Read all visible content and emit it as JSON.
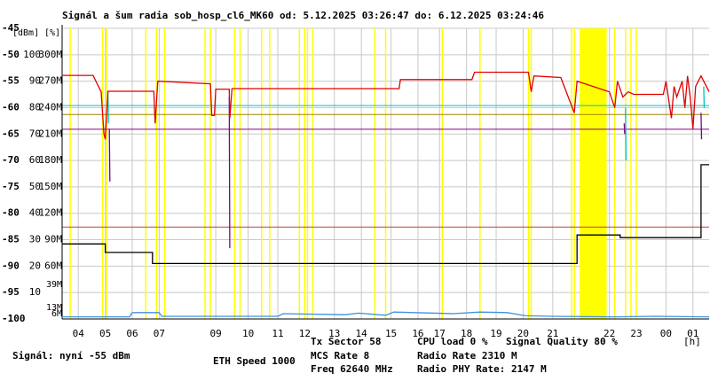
{
  "chart_data": {
    "type": "line",
    "title": "Signál a šum radia sob_hosp_cl6_MK60 od: 5.12.2025 03:26:47 do: 6.12.2025 03:24:46",
    "y_unit_label": "[dBm]",
    "y2_unit_label": "[%]",
    "x_unit_label": "[h]",
    "xlim": [
      0,
      24
    ],
    "xticks": [
      {
        "value": 0.6,
        "label": "04"
      },
      {
        "value": 1.6,
        "label": "05"
      },
      {
        "value": 2.6,
        "label": "06"
      },
      {
        "value": 3.6,
        "label": "07"
      },
      {
        "value": 5.7,
        "label": "09"
      },
      {
        "value": 6.9,
        "label": "10"
      },
      {
        "value": 8.0,
        "label": "11"
      },
      {
        "value": 9.0,
        "label": "12"
      },
      {
        "value": 10.1,
        "label": "13"
      },
      {
        "value": 11.1,
        "label": "14"
      },
      {
        "value": 12.2,
        "label": "15"
      },
      {
        "value": 13.2,
        "label": "16"
      },
      {
        "value": 14.0,
        "label": "17"
      },
      {
        "value": 15.0,
        "label": "18"
      },
      {
        "value": 16.1,
        "label": "19"
      },
      {
        "value": 17.1,
        "label": "20"
      },
      {
        "value": 18.2,
        "label": "21"
      },
      {
        "value": 20.3,
        "label": "22"
      },
      {
        "value": 21.3,
        "label": "23"
      },
      {
        "value": 22.4,
        "label": "00"
      },
      {
        "value": 23.4,
        "label": "01"
      }
    ],
    "ylim": [
      -100,
      -45
    ],
    "yticks": [
      -45,
      -50,
      -55,
      -60,
      -65,
      -70,
      -75,
      -80,
      -85,
      -90,
      -95,
      -100
    ],
    "y2lim": [
      0,
      110
    ],
    "y2ticks": [
      100,
      90,
      80,
      70,
      60,
      50,
      40,
      30,
      20,
      10
    ],
    "y3lim": [
      0,
      330
    ],
    "y3ticks": [
      {
        "value": 300,
        "label": "300M"
      },
      {
        "value": 270,
        "label": "270M"
      },
      {
        "value": 240,
        "label": "240M"
      },
      {
        "value": 210,
        "label": "210M"
      },
      {
        "value": 180,
        "label": "180M"
      },
      {
        "value": 150,
        "label": "150M"
      },
      {
        "value": 120,
        "label": "120M"
      },
      {
        "value": 90,
        "label": "90M"
      },
      {
        "value": 60,
        "label": "60M"
      }
    ],
    "y3_markers": [
      {
        "value": 39,
        "label": "39M",
        "color": "#e080e0"
      },
      {
        "value": 13,
        "label": "13M",
        "color": "#e080e0"
      },
      {
        "value": 6,
        "label": "6M",
        "color": "#800080"
      }
    ],
    "grid": true,
    "eth_events": [
      0.3,
      1.5,
      1.65,
      3.1,
      3.5,
      3.8,
      5.3,
      5.5,
      6.4,
      6.6,
      7.4,
      7.7,
      8.8,
      9.0,
      9.1,
      9.3,
      11.6,
      12.0,
      14.1,
      15.5,
      17.3,
      17.4,
      18.9,
      19.0,
      20.5,
      20.9,
      21.1,
      21.3
    ],
    "eth_color": "#ffff00",
    "eth_block": [
      19.2,
      20.2
    ],
    "ref_lines": [
      {
        "value": -59.6,
        "color": "#00c0c0"
      },
      {
        "value": -61.3,
        "color": "#a08000"
      },
      {
        "value": -64.1,
        "color": "#800080"
      },
      {
        "value": -82.6,
        "color": "#c04040"
      }
    ],
    "series": [
      {
        "name": "Tx Sector",
        "color": "#000000",
        "x": [
          0,
          1.6,
          1.6,
          3.35,
          3.35,
          19.1,
          19.1,
          20.7,
          20.7,
          23.7,
          23.7,
          24
        ],
        "values": [
          -85.8,
          -85.8,
          -87.4,
          -87.4,
          -89.5,
          -89.5,
          -84.1,
          -84.1,
          -84.6,
          -84.6,
          -70.8,
          -70.8
        ]
      },
      {
        "name": "CPU load",
        "color": "#4090e0",
        "x": [
          0,
          2.5,
          2.6,
          3.6,
          3.7,
          8.0,
          8.2,
          10.5,
          11.0,
          12.0,
          12.3,
          14.5,
          15.5,
          16.5,
          17.2,
          18.2,
          20.5,
          22.0,
          24
        ],
        "values": [
          -99.6,
          -99.6,
          -98.8,
          -98.8,
          -99.5,
          -99.5,
          -99.0,
          -99.2,
          -98.9,
          -99.3,
          -98.7,
          -99.0,
          -98.7,
          -98.8,
          -99.4,
          -99.5,
          -99.6,
          -99.5,
          -99.6
        ]
      },
      {
        "name": "Signal Quality",
        "color": "#00c0c0",
        "x": [
          1.7,
          1.72,
          null,
          20.9,
          20.92,
          null,
          23.8,
          23.82
        ],
        "values": [
          -57,
          -63,
          null,
          -60,
          -70,
          null,
          -56,
          -60
        ]
      },
      {
        "name": "Radio PHY Rate",
        "color": "#800080",
        "x": [
          1.75,
          1.77,
          null,
          6.2,
          6.22,
          null,
          20.85,
          20.87,
          null,
          23.7,
          23.72
        ],
        "values": [
          -64,
          -74,
          null,
          -58,
          -86.6,
          null,
          -63,
          -65,
          null,
          -61,
          -66
        ]
      },
      {
        "name": "Signál",
        "color": "#e00000",
        "x": [
          0,
          1.15,
          1.3,
          1.45,
          1.55,
          1.6,
          1.7,
          3.4,
          3.45,
          3.55,
          5.5,
          5.55,
          5.65,
          5.7,
          6.2,
          6.22,
          6.3,
          12.5,
          12.55,
          15.2,
          15.3,
          17.3,
          17.4,
          17.5,
          18.5,
          19.0,
          19.1,
          20.3,
          20.5,
          20.6,
          20.8,
          21.0,
          21.2,
          22.3,
          22.4,
          22.6,
          22.7,
          22.8,
          23.0,
          23.1,
          23.2,
          23.3,
          23.4,
          23.5,
          23.7,
          24
        ],
        "values": [
          -53.9,
          -53.9,
          -55.5,
          -57,
          -65,
          -66,
          -56.9,
          -56.9,
          -63,
          -55,
          -55.5,
          -61.5,
          -61.5,
          -56.5,
          -56.5,
          -62,
          -56.4,
          -56.4,
          -54.7,
          -54.7,
          -53.3,
          -53.3,
          -57,
          -54,
          -54.3,
          -61,
          -55,
          -57,
          -60,
          -55,
          -58,
          -57,
          -57.5,
          -57.5,
          -55,
          -62,
          -56,
          -58,
          -55,
          -60,
          -54,
          -58,
          -64,
          -56,
          -54,
          -57
        ]
      }
    ],
    "legend": [
      {
        "text": "Signál: nyní -55 dBm",
        "color": "#e00000"
      },
      {
        "text": "ETH Speed 1000",
        "color": "#ffff00"
      },
      {
        "text": "Tx Sector 58",
        "color": "#000000"
      },
      {
        "text": "MCS Rate 8",
        "color": "#80a000"
      },
      {
        "text": "Freq 62640 MHz",
        "color": "#c06060"
      },
      {
        "text": "CPU load 0 %",
        "color": "#80c0ff"
      },
      {
        "text": "Signal Quality 80 %",
        "color": "#00c0c0"
      },
      {
        "text": "Radio Rate 2310 M",
        "color": "#e080e0"
      },
      {
        "text": "Radio PHY Rate: 2147 M",
        "color": "#800080"
      }
    ]
  }
}
